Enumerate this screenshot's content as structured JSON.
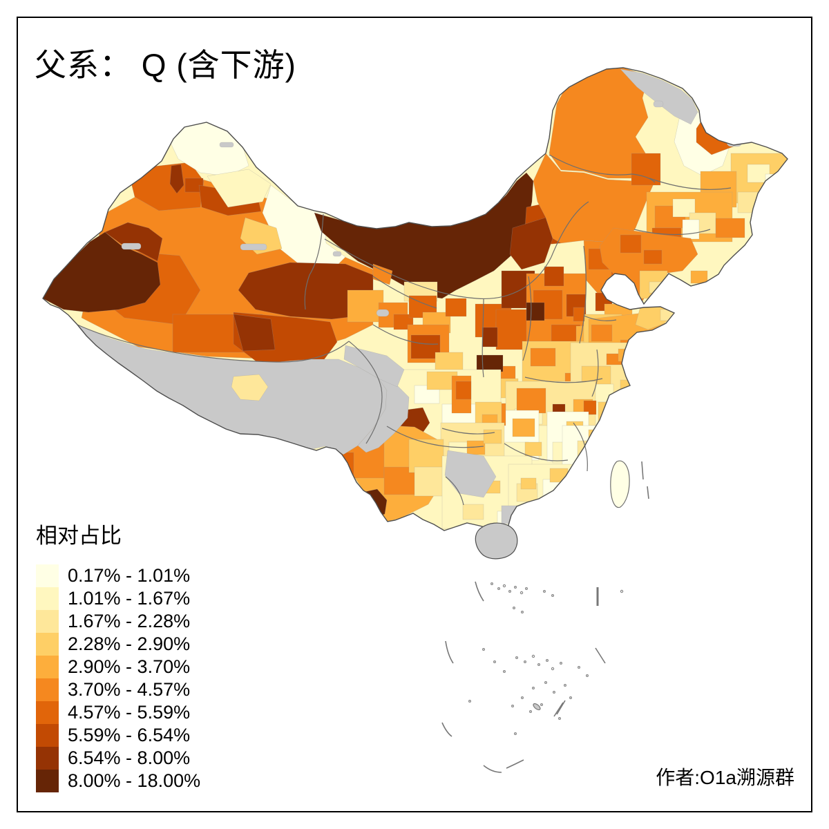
{
  "title": "父系： Q (含下游)",
  "legend": {
    "title": "相对占比",
    "classes": [
      {
        "label": "0.17% - 1.01%",
        "color": "#FFFFE5"
      },
      {
        "label": "1.01% - 1.67%",
        "color": "#FFF7BF"
      },
      {
        "label": "1.67% - 2.28%",
        "color": "#FEE79A"
      },
      {
        "label": "2.28% - 2.90%",
        "color": "#FECF66"
      },
      {
        "label": "2.90% - 3.70%",
        "color": "#FDAE3C"
      },
      {
        "label": "3.70% - 4.57%",
        "color": "#F5881F"
      },
      {
        "label": "4.57% - 5.59%",
        "color": "#E1650A"
      },
      {
        "label": "5.59% - 6.54%",
        "color": "#C24A03"
      },
      {
        "label": "6.54% - 8.00%",
        "color": "#953304"
      },
      {
        "label": "8.00% - 18.00%",
        "color": "#662506"
      }
    ],
    "nodata_color": "#C9C9C9"
  },
  "attribution": "作者:O1a溯源群",
  "map": {
    "outline_color": "#4D4D4D",
    "province_line_color": "#6E6E6E",
    "prefecture_line_color": "#9A9A9A",
    "sea_color": "#FFFFFF",
    "frame_color": "#000000"
  }
}
